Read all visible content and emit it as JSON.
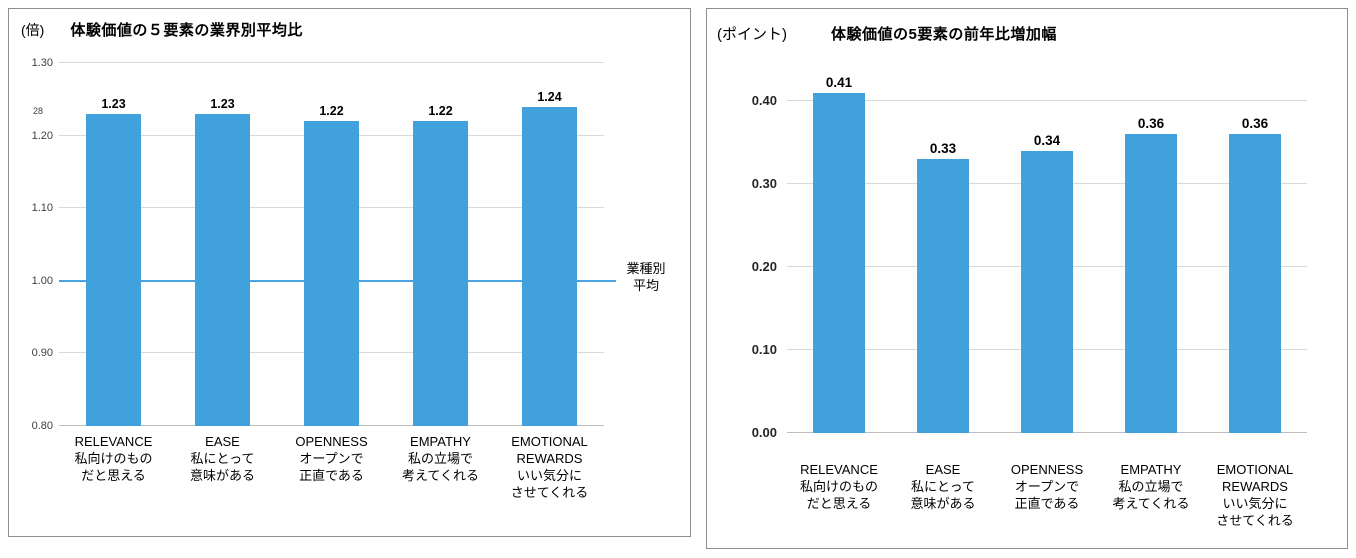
{
  "chart_data": [
    {
      "type": "bar",
      "unit_label": "(倍)",
      "title": "体験価値の５要素の業界別平均比",
      "categories": [
        [
          "RELEVANCE",
          "私向けのもの",
          "だと思える"
        ],
        [
          "EASE",
          "私にとって",
          "意味がある"
        ],
        [
          "OPENNESS",
          "オープンで",
          "正直である"
        ],
        [
          "EMPATHY",
          "私の立場で",
          "考えてくれる"
        ],
        [
          "EMOTIONAL",
          "REWARDS",
          "いい気分に",
          "させてくれる"
        ]
      ],
      "values": [
        1.23,
        1.23,
        1.22,
        1.22,
        1.24
      ],
      "ylim": [
        0.8,
        1.3
      ],
      "yticks": [
        0.8,
        0.9,
        1.0,
        1.1,
        1.2,
        1.3
      ],
      "grid": true,
      "legend": "none",
      "bar_color": "#41a1dc",
      "stray_label": "28",
      "reference_line": {
        "value": 1.0,
        "color": "#4aa5de",
        "label": "業種別平均",
        "label_lines": [
          "業種別",
          "平均"
        ]
      }
    },
    {
      "type": "bar",
      "unit_label": "(ポイント)",
      "title": "体験価値の5要素の前年比増加幅",
      "categories": [
        [
          "RELEVANCE",
          "私向けのもの",
          "だと思える"
        ],
        [
          "EASE",
          "私にとって",
          "意味がある"
        ],
        [
          "OPENNESS",
          "オープンで",
          "正直である"
        ],
        [
          "EMPATHY",
          "私の立場で",
          "考えてくれる"
        ],
        [
          "EMOTIONAL",
          "REWARDS",
          "いい気分に",
          "させてくれる"
        ]
      ],
      "values": [
        0.41,
        0.33,
        0.34,
        0.36,
        0.36
      ],
      "ylim": [
        0.0,
        0.44
      ],
      "yticks": [
        0.0,
        0.1,
        0.2,
        0.3,
        0.4
      ],
      "grid": true,
      "legend": "none",
      "bar_color": "#41a1dc"
    }
  ]
}
